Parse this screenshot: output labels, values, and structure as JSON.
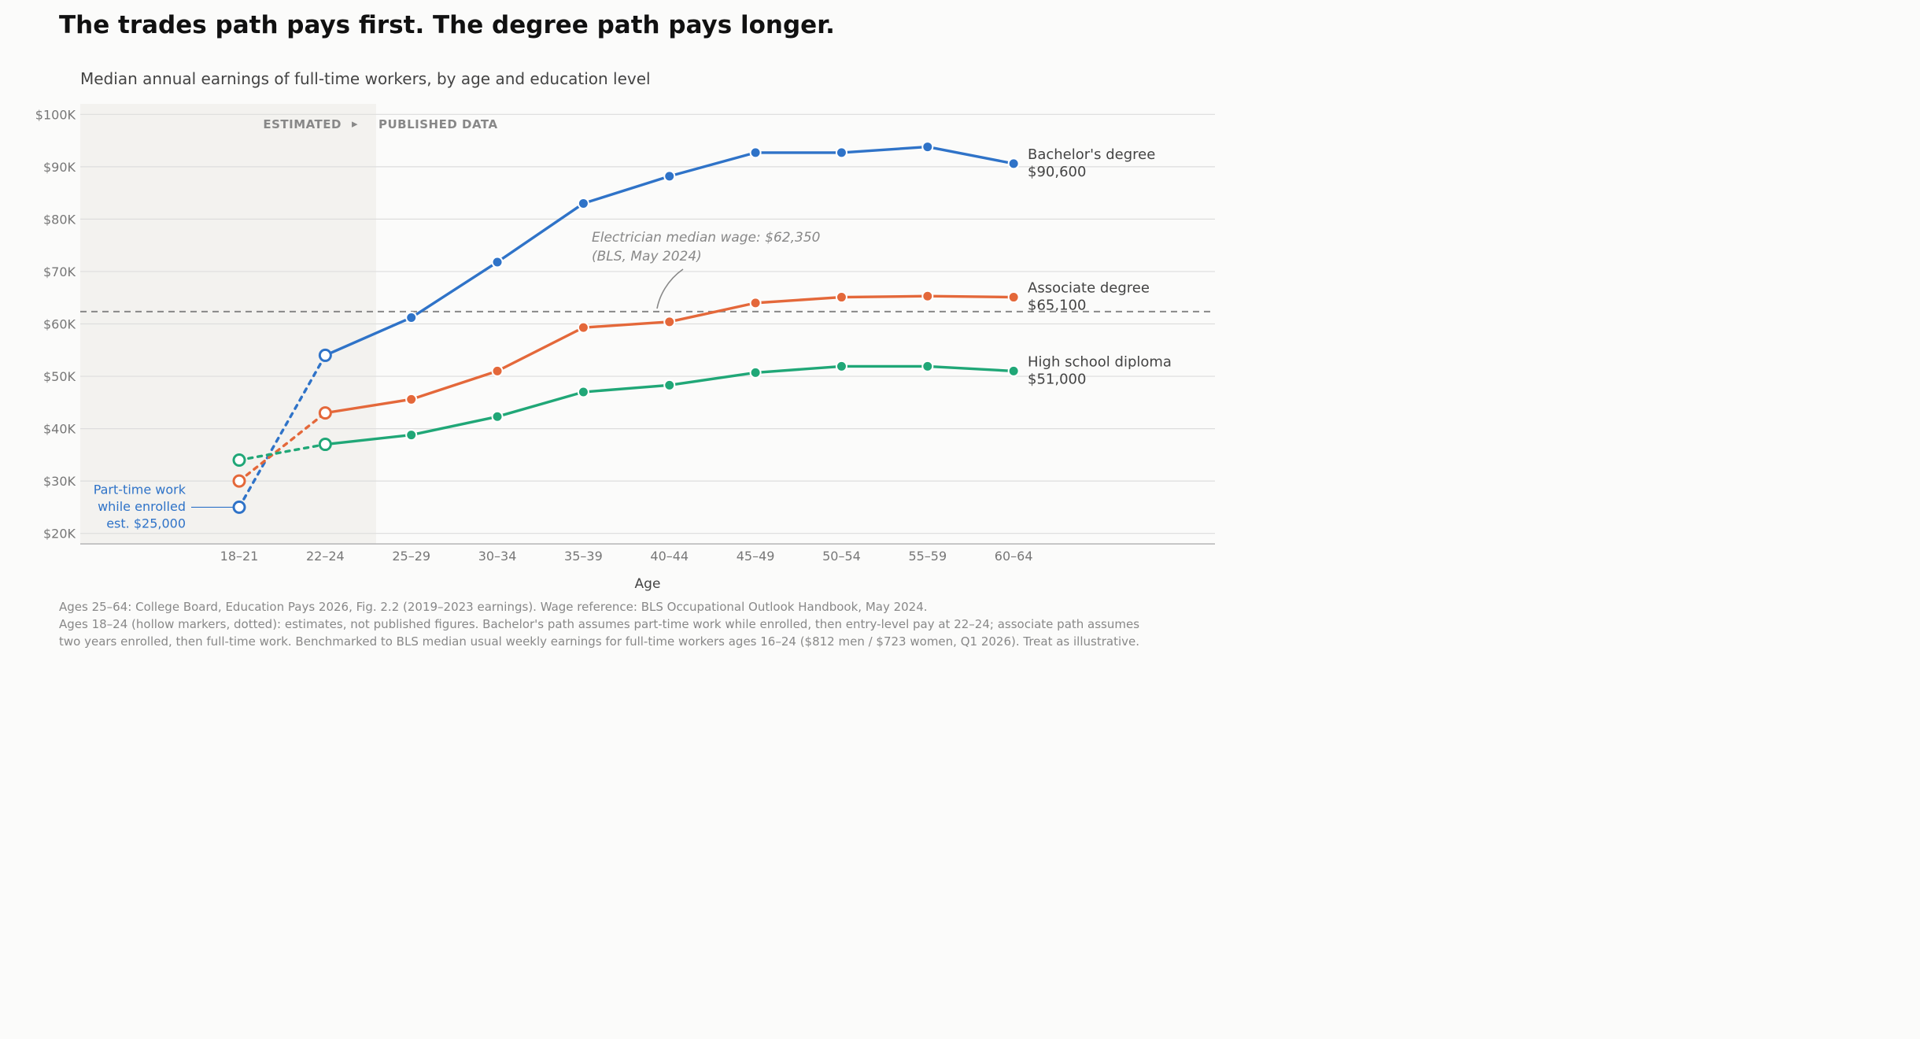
{
  "title": "The trades path pays first. The degree path pays longer.",
  "subtitle": "Median annual earnings of full-time workers, by age and education level",
  "footnotes": [
    "Ages 25–64: College Board, Education Pays 2026, Fig. 2.2 (2019–2023 earnings). Wage reference: BLS Occupational Outlook Handbook, May 2024.",
    "Ages 18–24 (hollow markers, dotted): estimates, not published figures. Bachelor's path assumes part-time work while enrolled, then entry-level pay at 22–24; associate path assumes",
    "two years enrolled, then full-time work. Benchmarked to BLS median usual weekly earnings for full-time workers ages 16–24 ($812 men / $723 women, Q1 2026). Treat as illustrative."
  ],
  "chart_data": {
    "type": "line",
    "xlabel": "Age",
    "ylabel": "",
    "categories": [
      "18–21",
      "22–24",
      "25–29",
      "30–34",
      "35–39",
      "40–44",
      "45–49",
      "50–54",
      "55–59",
      "60–64"
    ],
    "ylim": [
      18000,
      102000
    ],
    "y_ticks": [
      20000,
      30000,
      40000,
      50000,
      60000,
      70000,
      80000,
      90000,
      100000
    ],
    "y_tick_labels": [
      "$20K",
      "$30K",
      "$40K",
      "$50K",
      "$60K",
      "$70K",
      "$80K",
      "$90K",
      "$100K"
    ],
    "grid": true,
    "estimated_count": 2,
    "region_labels": {
      "estimated": "ESTIMATED",
      "arrow": "▸",
      "published": "PUBLISHED DATA"
    },
    "series": [
      {
        "name": "Bachelor's degree",
        "end_value_label": "$90,600",
        "color": "#2f73c8",
        "values": [
          25000,
          54000,
          61200,
          71800,
          83000,
          88200,
          92700,
          92700,
          93800,
          90600
        ]
      },
      {
        "name": "Associate degree",
        "end_value_label": "$65,100",
        "color": "#e4683a",
        "values": [
          30000,
          43000,
          45600,
          51000,
          59300,
          60400,
          64000,
          65100,
          65300,
          65100
        ]
      },
      {
        "name": "High school diploma",
        "end_value_label": "$51,000",
        "color": "#20a777",
        "values": [
          34000,
          37000,
          38800,
          42300,
          47000,
          48300,
          50700,
          51900,
          51900,
          51000
        ]
      }
    ],
    "reference_line": {
      "value": 62350,
      "label_line1": "Electrician median wage: $62,350",
      "label_line2": "(BLS, May 2024)",
      "color": "#888888"
    },
    "callout": {
      "lines": [
        "Part-time work",
        "while enrolled",
        "est. $25,000"
      ],
      "series_index": 0,
      "point_index": 0
    }
  }
}
